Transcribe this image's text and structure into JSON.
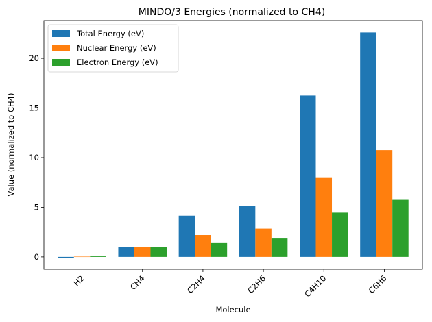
{
  "chart_data": {
    "type": "bar",
    "title": "MINDO/3 Energies (normalized to CH4)",
    "xlabel": "Molecule",
    "ylabel": "Value (normalized to CH4)",
    "categories": [
      "H2",
      "CH4",
      "C2H4",
      "C2H6",
      "C4H10",
      "C6H6"
    ],
    "series": [
      {
        "name": "Total Energy (eV)",
        "color": "#1f77b4",
        "values": [
          -0.12,
          1.0,
          4.15,
          5.15,
          16.25,
          22.6
        ]
      },
      {
        "name": "Nuclear Energy (eV)",
        "color": "#ff7f0e",
        "values": [
          0.03,
          1.0,
          2.2,
          2.85,
          7.95,
          10.75
        ]
      },
      {
        "name": "Electron Energy (eV)",
        "color": "#2ca02c",
        "values": [
          0.1,
          1.0,
          1.45,
          1.85,
          4.45,
          5.75
        ]
      }
    ],
    "ylim": [
      -1.25,
      23.8
    ],
    "yticks": [
      0,
      5,
      10,
      15,
      20
    ],
    "grid": false,
    "legend_position": "top-left"
  }
}
